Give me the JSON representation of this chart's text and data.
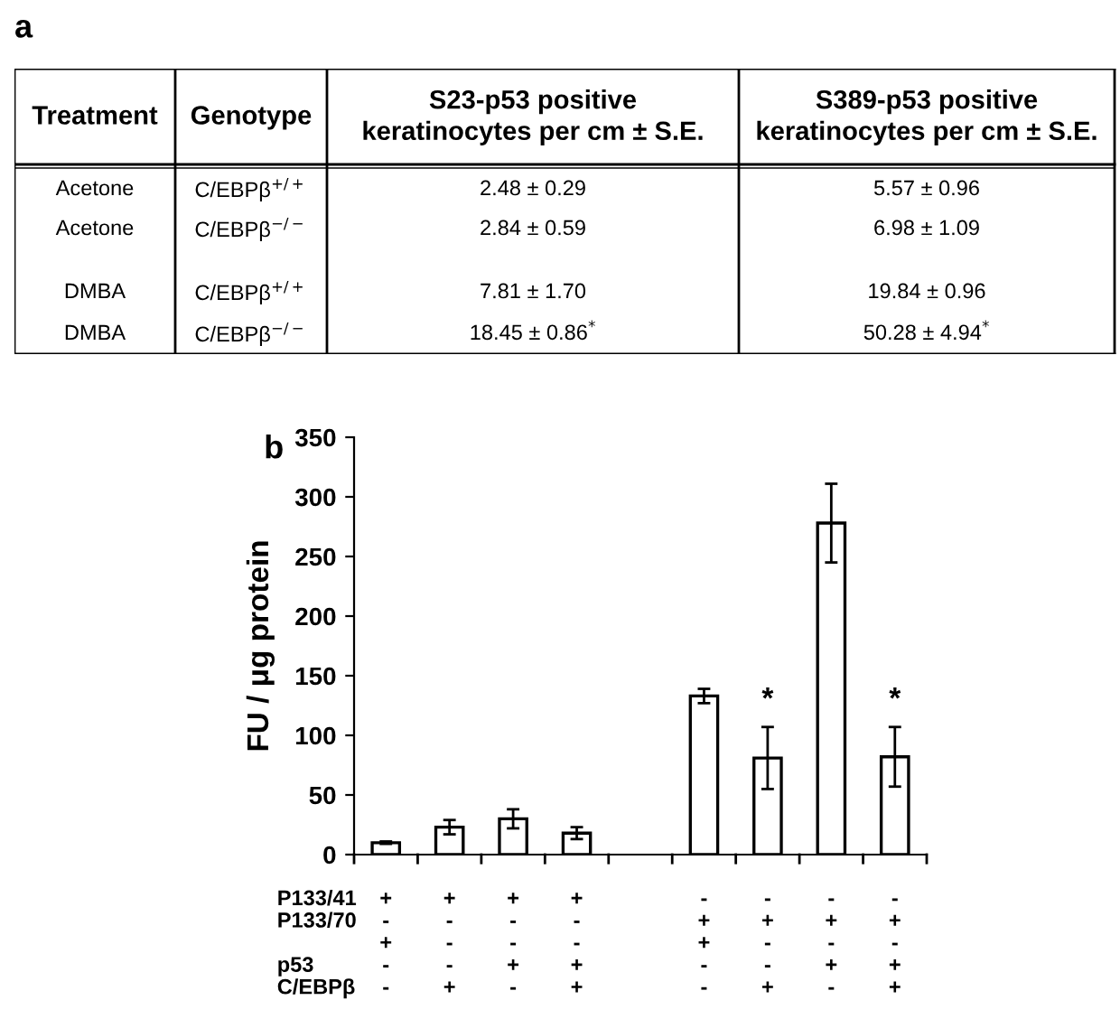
{
  "chart_data": [
    {
      "type": "other",
      "title": "a",
      "annotations": [
        "Treatment",
        "Genotype",
        "S23-p53 positive\nkeratinocytes per cm ± S.E.",
        "S389-p53 positive\nkeratinocytes per cm ± S.E.",
        "Acetone",
        "C/EBPβ$^{+/+}$",
        "2.48 ± 0.29",
        "5.57 ± 0.96",
        "Acetone",
        "C/EBPβ$^{−/−}$",
        "2.84 ± 0.59",
        "6.98 ± 1.09",
        "DMBA",
        "C/EBPβ$^{+/+}$",
        "7.81 ± 1.70",
        "19.84 ± 0.96",
        "DMBA",
        "C/EBPβ$^{−/−}$",
        "18.45 ± 0.86$^{*}$",
        "50.28 ± 4.94$^{*}$"
      ]
    },
    {
      "type": "bar",
      "title": "b",
      "ylabel": "FU / μg protein",
      "categories": [
        "+\n-\n+\n-\n-",
        "+\n-\n-\n-\n+",
        "+\n-\n-\n+\n-",
        "+\n-\n-\n+\n+",
        null,
        "-\n+\n+\n-\n-",
        "-\n+\n-\n-\n+",
        "-\n+\n-\n+\n-",
        "-\n+\n-\n+\n+"
      ],
      "values": [
        10,
        23,
        30,
        18,
        null,
        133,
        81,
        278,
        82
      ],
      "errors": [
        1,
        6,
        8,
        5,
        null,
        6,
        26,
        33,
        25
      ],
      "color": "#ffffff",
      "ylim": [
        0,
        350
      ],
      "yticks": [
        0,
        50,
        100,
        150,
        200,
        250,
        300,
        350
      ],
      "annotations": [
        "P133/41\nP133/70\n\np53\nC/EBPβ",
        {
          "text": "*",
          "x": "-\n+\n-\n-\n+",
          "y": 107
        },
        {
          "text": "*",
          "x": "-\n+\n-\n+\n+",
          "y": 107
        }
      ]
    }
  ]
}
